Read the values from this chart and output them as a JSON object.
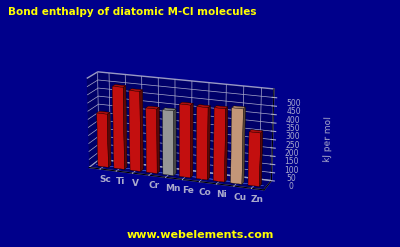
{
  "elements": [
    "Sc",
    "Ti",
    "V",
    "Cr",
    "Mn",
    "Fe",
    "Co",
    "Ni",
    "Cu",
    "Zn"
  ],
  "values": [
    331,
    505,
    490,
    395,
    395,
    440,
    436,
    440,
    450,
    320
  ],
  "bar_colors": [
    "#dd1111",
    "#dd1111",
    "#dd1111",
    "#dd1111",
    "#aaaaaa",
    "#dd1111",
    "#dd1111",
    "#dd1111",
    "#ddaa88",
    "#dd1111"
  ],
  "title": "Bond enthalpy of diatomic M-Cl molecules",
  "ylabel": "kJ per mol",
  "ylim": [
    0,
    550
  ],
  "yticks": [
    0,
    50,
    100,
    150,
    200,
    250,
    300,
    350,
    400,
    450,
    500
  ],
  "background_color": "#00008B",
  "grid_color": "#aaaacc",
  "title_color": "#ffff00",
  "label_color": "#aaaacc",
  "tick_color": "#aaaacc",
  "watermark": "www.webelements.com",
  "watermark_color": "#ffff00",
  "elev": 18,
  "azim": -70
}
